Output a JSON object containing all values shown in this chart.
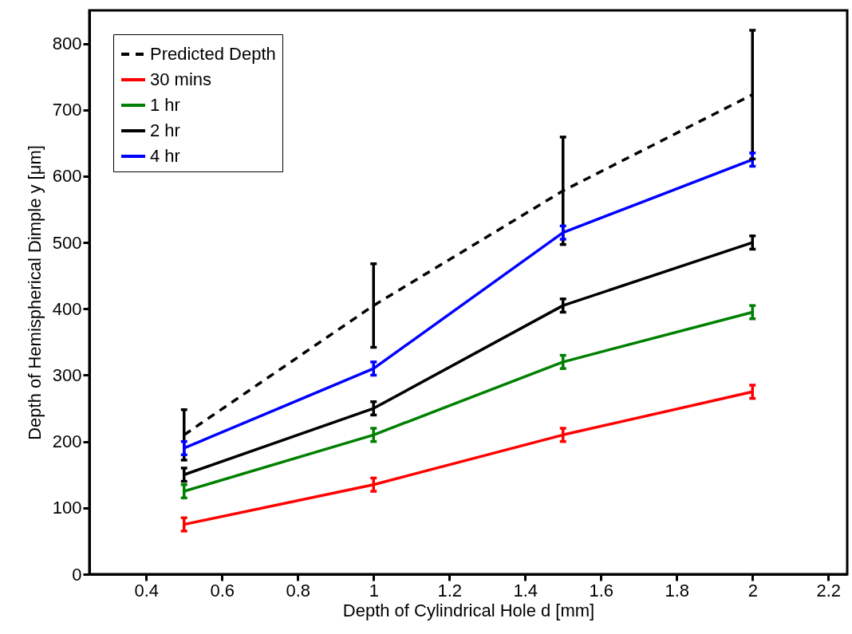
{
  "chart_data": {
    "type": "line",
    "xlabel": "Depth of Cylindrical Hole d [mm]",
    "ylabel": "Depth of Hemispherical Dimple y [μm]",
    "x": [
      0.5,
      1,
      1.5,
      2
    ],
    "xlim": [
      0.25,
      2.25
    ],
    "xticks": [
      0.4,
      0.6,
      0.8,
      1,
      1.2,
      1.4,
      1.6,
      1.8,
      2,
      2.2
    ],
    "ylim": [
      0,
      850
    ],
    "yticks": [
      0,
      100,
      200,
      300,
      400,
      500,
      600,
      700,
      800
    ],
    "grid": false,
    "legend": "top left",
    "series": [
      {
        "name": "Predicted Depth",
        "color": "#000000",
        "line_style": "dashed",
        "values": [
          210,
          405,
          578,
          723
        ],
        "errors": [
          38,
          63,
          81,
          97
        ]
      },
      {
        "name": "30 mins",
        "color": "#ff0000",
        "values": [
          75,
          135,
          210,
          275
        ],
        "errors": [
          10,
          10,
          10,
          10
        ]
      },
      {
        "name": "1 hr",
        "color": "#008000",
        "values": [
          125,
          210,
          320,
          395
        ],
        "errors": [
          10,
          10,
          10,
          10
        ]
      },
      {
        "name": "2 hr",
        "color": "#000000",
        "values": [
          150,
          250,
          405,
          500
        ],
        "errors": [
          10,
          10,
          10,
          10
        ]
      },
      {
        "name": "4 hr",
        "color": "#0000ff",
        "values": [
          190,
          310,
          515,
          625
        ],
        "errors": [
          10,
          10,
          10,
          10
        ]
      }
    ]
  }
}
